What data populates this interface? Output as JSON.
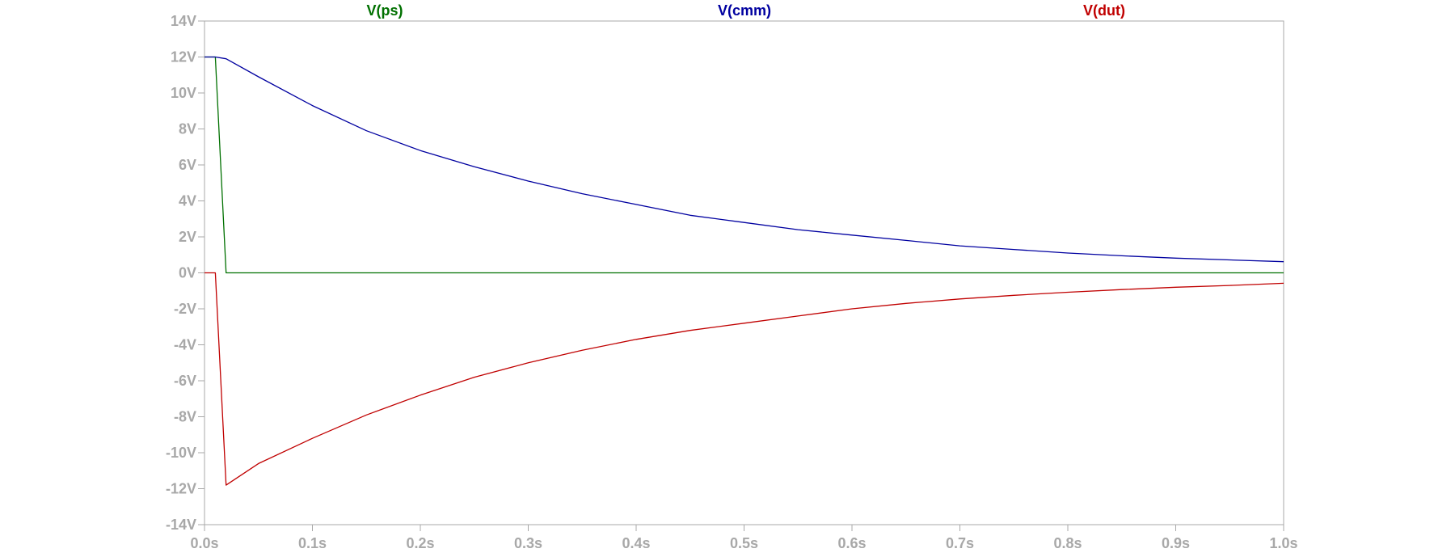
{
  "chart_data": {
    "type": "line",
    "title": "",
    "xlabel": "",
    "ylabel": "",
    "xlim": [
      0.0,
      1.0
    ],
    "ylim": [
      -14,
      14
    ],
    "grid": false,
    "legend_placement": "top",
    "x_tick_values": [
      0.0,
      0.1,
      0.2,
      0.3,
      0.4,
      0.5,
      0.6,
      0.7,
      0.8,
      0.9,
      1.0
    ],
    "x_tick_labels": [
      "0.0s",
      "0.1s",
      "0.2s",
      "0.3s",
      "0.4s",
      "0.5s",
      "0.6s",
      "0.7s",
      "0.8s",
      "0.9s",
      "1.0s"
    ],
    "y_tick_values": [
      14,
      12,
      10,
      8,
      6,
      4,
      2,
      0,
      -2,
      -4,
      -6,
      -8,
      -10,
      -12,
      -14
    ],
    "y_tick_labels": [
      "14V",
      "12V",
      "10V",
      "8V",
      "6V",
      "4V",
      "2V",
      "0V",
      "-2V",
      "-4V",
      "-6V",
      "-8V",
      "-10V",
      "-12V",
      "-14V"
    ],
    "series": [
      {
        "name": "V(ps)",
        "color": "#007000",
        "x": [
          0.0,
          0.01,
          0.02,
          1.0
        ],
        "y": [
          12,
          12,
          0,
          0
        ]
      },
      {
        "name": "V(cmm)",
        "color": "#0000a0",
        "x": [
          0.0,
          0.01,
          0.02,
          0.05,
          0.1,
          0.15,
          0.2,
          0.25,
          0.3,
          0.35,
          0.4,
          0.45,
          0.5,
          0.55,
          0.6,
          0.65,
          0.7,
          0.75,
          0.8,
          0.85,
          0.9,
          0.95,
          1.0
        ],
        "y": [
          12,
          12,
          11.9,
          10.9,
          9.3,
          7.9,
          6.8,
          5.9,
          5.1,
          4.4,
          3.8,
          3.2,
          2.8,
          2.4,
          2.1,
          1.8,
          1.5,
          1.3,
          1.1,
          0.95,
          0.82,
          0.72,
          0.62
        ]
      },
      {
        "name": "V(dut)",
        "color": "#c00000",
        "x": [
          0.0,
          0.01,
          0.02,
          0.05,
          0.1,
          0.15,
          0.2,
          0.25,
          0.3,
          0.35,
          0.4,
          0.45,
          0.5,
          0.55,
          0.6,
          0.65,
          0.7,
          0.75,
          0.8,
          0.85,
          0.9,
          0.95,
          1.0
        ],
        "y": [
          0,
          0,
          -11.8,
          -10.6,
          -9.2,
          -7.9,
          -6.8,
          -5.8,
          -5.0,
          -4.3,
          -3.7,
          -3.2,
          -2.8,
          -2.4,
          -2.0,
          -1.7,
          -1.45,
          -1.25,
          -1.08,
          -0.93,
          -0.8,
          -0.7,
          -0.58
        ]
      }
    ]
  }
}
